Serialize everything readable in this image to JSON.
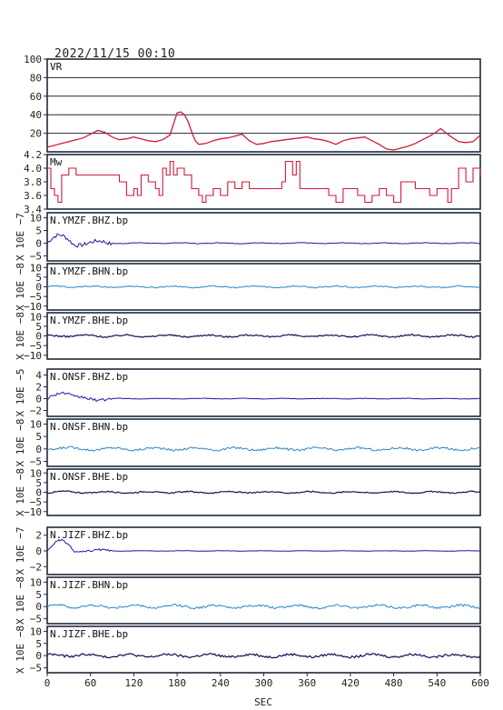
{
  "timestamp": "2022/11/15 00:10",
  "chart_data": {
    "type": "line",
    "xlabel": "SEC",
    "xlim": [
      0,
      600
    ],
    "xticks": [
      0,
      60,
      120,
      180,
      240,
      300,
      360,
      420,
      480,
      540,
      600
    ],
    "colors": {
      "vr": "#d21a3c",
      "mw": "#d21a3c",
      "bhz": "#1a1aa8",
      "bhn": "#2a86c8",
      "bhe": "#10105a",
      "frame": "#1d2a3a"
    },
    "vr": {
      "label": "VR",
      "ylim": [
        0,
        100
      ],
      "yticks": [
        "100",
        "80",
        "60",
        "40",
        "20"
      ],
      "x": [
        0,
        10,
        20,
        30,
        40,
        50,
        60,
        70,
        80,
        90,
        100,
        110,
        120,
        130,
        140,
        150,
        160,
        170,
        175,
        180,
        185,
        190,
        195,
        200,
        205,
        210,
        220,
        230,
        240,
        250,
        260,
        270,
        280,
        290,
        300,
        310,
        320,
        330,
        340,
        350,
        360,
        370,
        380,
        390,
        400,
        410,
        420,
        430,
        440,
        450,
        460,
        470,
        480,
        490,
        500,
        510,
        520,
        530,
        540,
        545,
        550,
        560,
        570,
        580,
        590,
        600
      ],
      "values": [
        5,
        7,
        9,
        11,
        13,
        15,
        19,
        23,
        21,
        16,
        13,
        14,
        16,
        14,
        12,
        11,
        13,
        18,
        30,
        42,
        43,
        40,
        33,
        22,
        12,
        8,
        9,
        12,
        14,
        15,
        17,
        19,
        12,
        8,
        9,
        11,
        12,
        13,
        14,
        15,
        16,
        14,
        13,
        11,
        8,
        12,
        14,
        15,
        16,
        12,
        8,
        3,
        2,
        4,
        6,
        9,
        13,
        17,
        22,
        25,
        22,
        16,
        11,
        10,
        11,
        18
      ]
    },
    "mw": {
      "label": "Mw",
      "ylim": [
        3.4,
        4.2
      ],
      "yticks": [
        "4.2",
        "4.0",
        "3.8",
        "3.6",
        "3.4"
      ],
      "x": [
        0,
        5,
        10,
        15,
        20,
        30,
        40,
        50,
        60,
        70,
        80,
        90,
        100,
        110,
        120,
        125,
        130,
        140,
        150,
        155,
        160,
        165,
        170,
        175,
        180,
        190,
        200,
        210,
        215,
        220,
        230,
        240,
        250,
        260,
        270,
        280,
        290,
        300,
        310,
        320,
        325,
        330,
        340,
        345,
        350,
        360,
        370,
        380,
        390,
        400,
        410,
        420,
        430,
        440,
        450,
        460,
        470,
        480,
        490,
        500,
        510,
        520,
        530,
        540,
        550,
        555,
        560,
        570,
        580,
        590,
        600
      ],
      "values": [
        4.0,
        3.7,
        3.6,
        3.5,
        3.9,
        4.0,
        3.9,
        3.9,
        3.9,
        3.9,
        3.9,
        3.9,
        3.8,
        3.6,
        3.7,
        3.6,
        3.9,
        3.8,
        3.7,
        3.6,
        4.0,
        3.9,
        4.1,
        3.9,
        4.0,
        3.9,
        3.7,
        3.6,
        3.5,
        3.6,
        3.7,
        3.6,
        3.8,
        3.7,
        3.8,
        3.7,
        3.7,
        3.7,
        3.7,
        3.7,
        3.8,
        4.1,
        3.9,
        4.1,
        3.7,
        3.7,
        3.7,
        3.7,
        3.6,
        3.5,
        3.7,
        3.7,
        3.6,
        3.5,
        3.6,
        3.7,
        3.6,
        3.5,
        3.8,
        3.8,
        3.7,
        3.7,
        3.6,
        3.7,
        3.7,
        3.5,
        3.7,
        4.0,
        3.8,
        4.0,
        3.9
      ]
    },
    "traces": [
      {
        "label": "N.YMZF.BHZ.bp",
        "component": "bhz",
        "exp": "X 10E −7",
        "ylim": [
          -7,
          12
        ],
        "yticks": [
          "10",
          "5",
          "0",
          "−5"
        ],
        "amp": 0.25,
        "peak": 0.8
      },
      {
        "label": "N.YMZF.BHN.bp",
        "component": "bhn",
        "exp": "X 10E −8",
        "ylim": [
          -12,
          12
        ],
        "yticks": [
          "10",
          "5",
          "0",
          "−5",
          "−10"
        ],
        "amp": 0.6,
        "peak": 0.2
      },
      {
        "label": "N.YMZF.BHE.bp",
        "component": "bhe",
        "exp": "X 10E −8",
        "ylim": [
          -12,
          12
        ],
        "yticks": [
          "10",
          "5",
          "0",
          "−5",
          "−10"
        ],
        "amp": 0.8,
        "peak": 0.2
      },
      {
        "label": "N.ONSF.BHZ.bp",
        "component": "bhz",
        "exp": "X 10E −5",
        "ylim": [
          -3,
          5
        ],
        "yticks": [
          "4",
          "2",
          "0",
          "−2"
        ],
        "amp": 0.08,
        "peak": 0.4
      },
      {
        "label": "N.ONSF.BHN.bp",
        "component": "bhn",
        "exp": "X 10E −8",
        "ylim": [
          -7,
          12
        ],
        "yticks": [
          "10",
          "5",
          "0",
          "−5"
        ],
        "amp": 0.8,
        "peak": 0.4
      },
      {
        "label": "N.ONSF.BHE.bp",
        "component": "bhe",
        "exp": "X 10E −8",
        "ylim": [
          -12,
          12
        ],
        "yticks": [
          "10",
          "5",
          "0",
          "−5",
          "−10"
        ],
        "amp": 0.6,
        "peak": 0.2
      },
      {
        "label": "N.JIZF.BHZ.bp",
        "component": "bhz",
        "exp": "X 10E −7",
        "ylim": [
          -3,
          3
        ],
        "yticks": [
          "2",
          "0",
          "−2"
        ],
        "amp": 0.04,
        "peak": 0.4
      },
      {
        "label": "N.JIZF.BHN.bp",
        "component": "bhn",
        "exp": "X 10E −8",
        "ylim": [
          -7,
          12
        ],
        "yticks": [
          "10",
          "5",
          "0",
          "−5"
        ],
        "amp": 0.9,
        "peak": 0.4
      },
      {
        "label": "N.JIZF.BHE.bp",
        "component": "bhe",
        "exp": "X 10E −8",
        "ylim": [
          -7,
          12
        ],
        "yticks": [
          "10",
          "5",
          "0",
          "−5"
        ],
        "amp": 0.9,
        "peak": 0.4
      }
    ]
  }
}
